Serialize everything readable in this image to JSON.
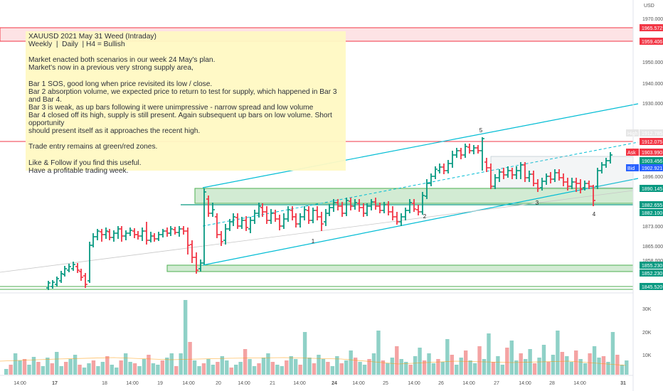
{
  "currency": "USD",
  "note_lines": [
    "XAUUSD 2021 May 31 Weed (Intraday)",
    "Weekly  |  Daily  | H4 = Bullish",
    "",
    "Market enacted both scenarios in our week 24 May's plan.",
    "Market's now in a previous very strong supply area,",
    "",
    "Bar 1 SOS, good long when price revisited its low / close.",
    "Bar 2 absorption volume, we expected price to return to test for supply, which happened in Bar 3 and Bar 4.",
    "Bar 3 is weak, as up bars following it were unimpressive - narrow spread and low volume",
    "Bar 4 closed off its high, supply is still present. Again subsequent up bars on low volume. Short opportunity",
    "should present itself as it approaches the recent high.",
    "",
    "Trade entry remains at green/red zones.",
    "",
    "Like & Follow if you find this useful.",
    "Have a profitable trading week."
  ],
  "chart_data": {
    "type": "candlestick",
    "symbol": "XAUUSD",
    "price_ticks": [
      "1970.000",
      "1950.000",
      "1940.000",
      "1930.000",
      "1896.000",
      "1873.000",
      "1865.000",
      "1858.000"
    ],
    "price_tags": [
      {
        "label": "1965.572",
        "color": "#f23645"
      },
      {
        "label": "1959.406",
        "color": "#f23645"
      },
      {
        "label": "1912.785",
        "color": "#e6e6e6",
        "prefix": "High"
      },
      {
        "label": "1912.075",
        "color": "#f23645"
      },
      {
        "label": "1903.990",
        "color": "#f23645",
        "prefix": "Ask"
      },
      {
        "label": "1903.456",
        "color": "#089981"
      },
      {
        "label": "1902.921",
        "color": "#2962ff",
        "prefix": "Bid"
      },
      {
        "label": "1890.145",
        "color": "#089981"
      },
      {
        "label": "1882.655",
        "color": "#089981"
      },
      {
        "label": "1882.100",
        "color": "#089981"
      },
      {
        "label": "1855.230",
        "color": "#089981"
      },
      {
        "label": "1852.230",
        "color": "#089981"
      },
      {
        "label": "1845.520",
        "color": "#089981"
      }
    ],
    "volume_ticks": [
      "30K",
      "20K",
      "10K"
    ],
    "x_labels": [
      "14:00",
      "17",
      "18",
      "14:00",
      "19",
      "14:00",
      "20",
      "14:00",
      "21",
      "14:00",
      "24",
      "14:00",
      "25",
      "14:00",
      "26",
      "14:00",
      "27",
      "14:00",
      "28",
      "14:00",
      "31"
    ],
    "bold_x_labels": [
      "17",
      "24",
      "31"
    ],
    "point_labels": [
      "1",
      "2",
      "3",
      "4",
      "5"
    ],
    "colors": {
      "up": "#089981",
      "down": "#f23645",
      "vol_up": "#8fd1c7",
      "vol_down": "#f4a3a3",
      "channel": "#00bcd4",
      "supply": "#f23645",
      "demand": "#4caf50"
    }
  }
}
